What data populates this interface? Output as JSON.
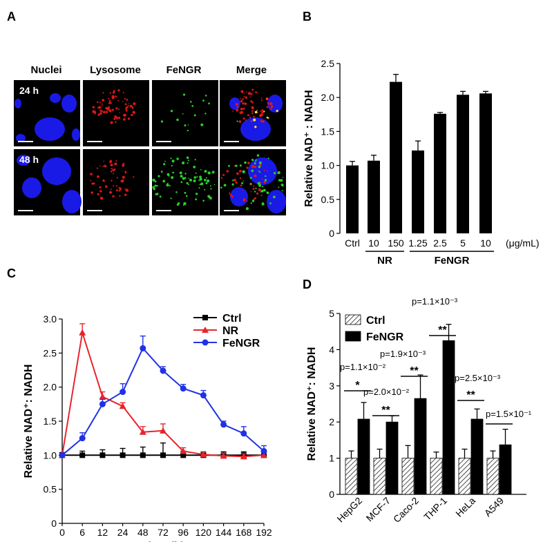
{
  "panels": {
    "A": {
      "label": "A",
      "columns": [
        "Nuclei",
        "Lysosome",
        "FeNGR",
        "Merge"
      ],
      "rows": [
        "24 h",
        "48 h"
      ]
    },
    "B": {
      "label": "B"
    },
    "C": {
      "label": "C"
    },
    "D": {
      "label": "D"
    }
  },
  "colors": {
    "ctrl": "#000000",
    "nr": "#e8242b",
    "fengr": "#2031e6",
    "nuclei": "#1a1ae6",
    "lysosome": "#e01515",
    "fengr_signal": "#28d028"
  },
  "chart_data": [
    {
      "id": "B",
      "type": "bar",
      "ylabel": "Relative NAD⁺ : NADH",
      "ylim": [
        0,
        2.5
      ],
      "yticks": [
        0,
        0.5,
        1.0,
        1.5,
        2.0,
        2.5
      ],
      "ytick_labels": [
        "0",
        "0.5",
        "1.0",
        "1.5",
        "2.0",
        "2.5"
      ],
      "categories": [
        "Ctrl",
        "10",
        "150",
        "1.25",
        "2.5",
        "5",
        "10"
      ],
      "values": [
        1.0,
        1.07,
        2.23,
        1.22,
        1.76,
        2.04,
        2.06
      ],
      "errors": [
        0.06,
        0.08,
        0.11,
        0.14,
        0.02,
        0.05,
        0.03
      ],
      "unit_label": "(μg/mL)",
      "groups": [
        {
          "name": "NR",
          "members": [
            1,
            2
          ]
        },
        {
          "name": "FeNGR",
          "members": [
            3,
            4,
            5,
            6
          ]
        }
      ],
      "grid": false
    },
    {
      "id": "C",
      "type": "line",
      "xlabel": "Time (h)",
      "ylabel": "Relative NAD⁺: NADH",
      "x": [
        "0",
        "6",
        "12",
        "24",
        "48",
        "72",
        "96",
        "120",
        "144",
        "168",
        "192"
      ],
      "ylim": [
        0,
        3.0
      ],
      "yticks": [
        0,
        0.5,
        1.0,
        1.5,
        2.0,
        2.5,
        3.0
      ],
      "ytick_labels": [
        "0",
        "0.5",
        "1.0",
        "1.5",
        "2.0",
        "2.5",
        "3.0"
      ],
      "series": [
        {
          "name": "Ctrl",
          "color": "#000000",
          "marker": "square",
          "values": [
            1.0,
            1.0,
            1.0,
            1.0,
            1.0,
            1.0,
            1.0,
            1.0,
            1.0,
            1.0,
            1.0
          ],
          "errors": [
            0.04,
            0.06,
            0.08,
            0.1,
            0.12,
            0.18,
            0.06,
            0.05,
            0.05,
            0.05,
            0.05
          ]
        },
        {
          "name": "NR",
          "color": "#e8242b",
          "marker": "triangle",
          "values": [
            1.0,
            2.8,
            1.86,
            1.72,
            1.34,
            1.36,
            1.06,
            1.01,
            0.99,
            0.98,
            1.0
          ],
          "errors": [
            0.0,
            0.13,
            0.07,
            0.05,
            0.08,
            0.1,
            0.05,
            0.04,
            0.04,
            0.04,
            0.03
          ]
        },
        {
          "name": "FeNGR",
          "color": "#2031e6",
          "marker": "circle",
          "values": [
            1.0,
            1.25,
            1.75,
            1.93,
            2.57,
            2.24,
            1.98,
            1.88,
            1.45,
            1.32,
            1.06
          ],
          "errors": [
            0.0,
            0.08,
            0.07,
            0.12,
            0.18,
            0.06,
            0.06,
            0.07,
            0.05,
            0.1,
            0.08
          ]
        }
      ],
      "legend_position": "top-right",
      "grid": false
    },
    {
      "id": "D",
      "type": "bar",
      "ylabel": "Relative NAD⁺: NADH",
      "ylim": [
        0,
        5
      ],
      "yticks": [
        0,
        1,
        2,
        3,
        4,
        5
      ],
      "ytick_labels": [
        "0",
        "1",
        "2",
        "3",
        "4",
        "5"
      ],
      "categories": [
        "HepG2",
        "MCF-7",
        "Caco-2",
        "THP-1",
        "HeLa",
        "A549"
      ],
      "series": [
        {
          "name": "Ctrl",
          "pattern": "hatched",
          "values": [
            1.0,
            1.0,
            1.0,
            1.0,
            1.0,
            1.0
          ],
          "errors": [
            0.2,
            0.25,
            0.35,
            0.17,
            0.25,
            0.2
          ]
        },
        {
          "name": "FeNGR",
          "pattern": "solid",
          "values": [
            2.08,
            2.0,
            2.65,
            4.25,
            2.08,
            1.37
          ],
          "errors": [
            0.46,
            0.17,
            0.65,
            0.45,
            0.28,
            0.43
          ]
        }
      ],
      "annotations": [
        {
          "category": "HepG2",
          "p_value": "p=1.1×10⁻²",
          "stars": "*"
        },
        {
          "category": "MCF-7",
          "p_value": "p=2.0×10⁻²",
          "stars": "**"
        },
        {
          "category": "Caco-2",
          "p_value": "p=1.9×10⁻³",
          "stars": "**"
        },
        {
          "category": "THP-1",
          "p_value": "p=1.1×10⁻³",
          "stars": "**"
        },
        {
          "category": "HeLa",
          "p_value": "p=2.5×10⁻³",
          "stars": "**"
        },
        {
          "category": "A549",
          "p_value": "p=1.5×10⁻¹",
          "stars": ""
        }
      ],
      "legend_position": "top-left",
      "grid": false
    }
  ]
}
